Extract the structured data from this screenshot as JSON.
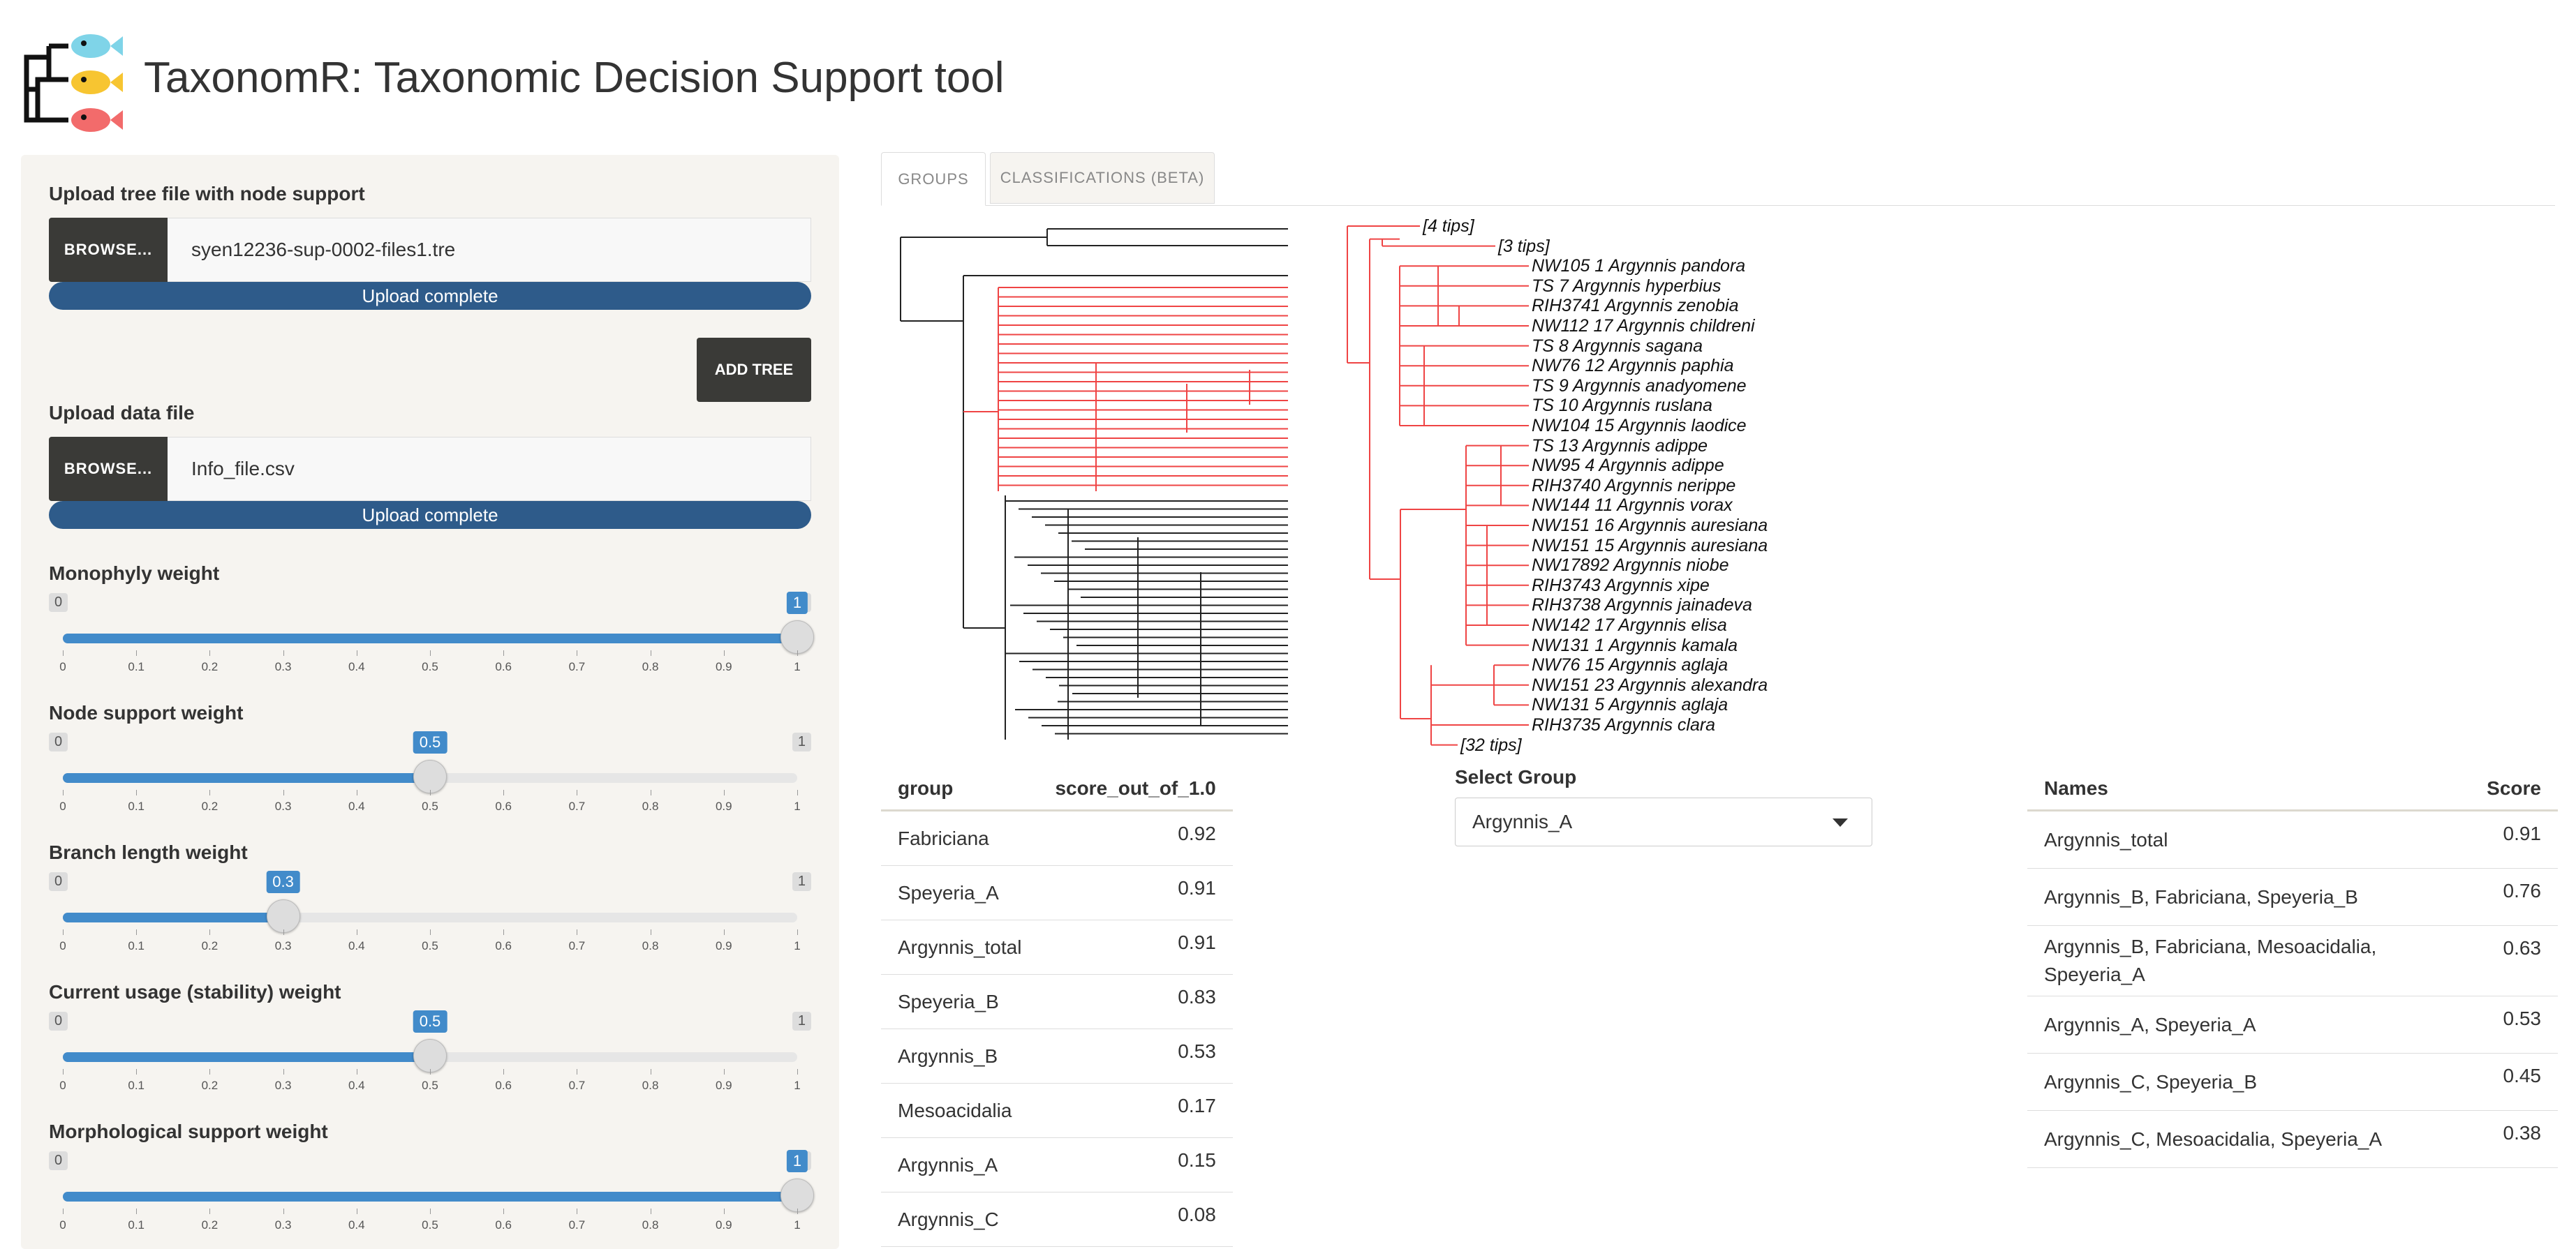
{
  "app": {
    "title": "TaxonomR: Taxonomic Decision Support tool",
    "logo_colors": [
      "#7fd4e8",
      "#f7c531",
      "#f26b6b"
    ]
  },
  "sidebar": {
    "tree_upload": {
      "label": "Upload tree file with node support",
      "browse_label": "BROWSE...",
      "file_name": "syen12236-sup-0002-files1.tre",
      "progress_text": "Upload complete",
      "progress": 1.0
    },
    "add_tree_label": "ADD TREE",
    "data_upload": {
      "label": "Upload data file",
      "browse_label": "BROWSE...",
      "file_name": "Info_file.csv",
      "progress_text": "Upload complete",
      "progress": 1.0
    },
    "sliders": [
      {
        "label": "Monophyly weight",
        "min": "0",
        "max": "1",
        "value": 1,
        "value_label": "1"
      },
      {
        "label": "Node support weight",
        "min": "0",
        "max": "1",
        "value": 0.5,
        "value_label": "0.5"
      },
      {
        "label": "Branch length weight",
        "min": "0",
        "max": "1",
        "value": 0.3,
        "value_label": "0.3"
      },
      {
        "label": "Current usage (stability) weight",
        "min": "0",
        "max": "1",
        "value": 0.5,
        "value_label": "0.5"
      },
      {
        "label": "Morphological support weight",
        "min": "0",
        "max": "1",
        "value": 1,
        "value_label": "1"
      }
    ],
    "tick_labels": [
      "0",
      "0.1",
      "0.2",
      "0.3",
      "0.4",
      "0.5",
      "0.6",
      "0.7",
      "0.8",
      "0.9",
      "1"
    ]
  },
  "tabs": [
    {
      "label": "GROUPS",
      "active": true
    },
    {
      "label": "CLASSIFICATIONS (BETA)",
      "active": false
    }
  ],
  "tree": {
    "tips": [
      {
        "label": "[4 tips]",
        "color": "red"
      },
      {
        "label": "[3 tips]",
        "color": "red"
      },
      {
        "label": "NW105 1 Argynnis pandora",
        "color": "red"
      },
      {
        "label": "TS 7 Argynnis hyperbius",
        "color": "red"
      },
      {
        "label": "RIH3741 Argynnis zenobia",
        "color": "red"
      },
      {
        "label": "NW112 17 Argynnis childreni",
        "color": "red"
      },
      {
        "label": "TS 8 Argynnis sagana",
        "color": "red"
      },
      {
        "label": "NW76 12 Argynnis paphia",
        "color": "red"
      },
      {
        "label": "TS 9 Argynnis anadyomene",
        "color": "red"
      },
      {
        "label": "TS 10 Argynnis ruslana",
        "color": "red"
      },
      {
        "label": "NW104 15 Argynnis laodice",
        "color": "red"
      },
      {
        "label": "TS 13 Argynnis adippe",
        "color": "red"
      },
      {
        "label": "NW95 4 Argynnis adippe",
        "color": "red"
      },
      {
        "label": "RIH3740 Argynnis nerippe",
        "color": "red"
      },
      {
        "label": "NW144 11 Argynnis vorax",
        "color": "red"
      },
      {
        "label": "NW151 16 Argynnis auresiana",
        "color": "red"
      },
      {
        "label": "NW151 15 Argynnis auresiana",
        "color": "red"
      },
      {
        "label": "NW17892 Argynnis niobe",
        "color": "red"
      },
      {
        "label": "RIH3743 Argynnis xipe",
        "color": "red"
      },
      {
        "label": "RIH3738 Argynnis jainadeva",
        "color": "red"
      },
      {
        "label": "NW142 17 Argynnis elisa",
        "color": "red"
      },
      {
        "label": "NW131 1 Argynnis kamala",
        "color": "red"
      },
      {
        "label": "NW76 15 Argynnis aglaja",
        "color": "red"
      },
      {
        "label": "NW151 23 Argynnis alexandra",
        "color": "red"
      },
      {
        "label": "NW131 5 Argynnis aglaja",
        "color": "red"
      },
      {
        "label": "RIH3735 Argynnis clara",
        "color": "red"
      },
      {
        "label": "[32 tips]",
        "color": "red"
      }
    ],
    "highlight_color": "#ef4444",
    "base_color": "#222222"
  },
  "group_table": {
    "headers": [
      "group",
      "score_out_of_1.0"
    ],
    "rows": [
      [
        "Fabriciana",
        "0.92"
      ],
      [
        "Speyeria_A",
        "0.91"
      ],
      [
        "Argynnis_total",
        "0.91"
      ],
      [
        "Speyeria_B",
        "0.83"
      ],
      [
        "Argynnis_B",
        "0.53"
      ],
      [
        "Mesoacidalia",
        "0.17"
      ],
      [
        "Argynnis_A",
        "0.15"
      ],
      [
        "Argynnis_C",
        "0.08"
      ]
    ]
  },
  "select_group": {
    "label": "Select Group",
    "value": "Argynnis_A"
  },
  "names_table": {
    "headers": [
      "Names",
      "Score"
    ],
    "rows": [
      [
        "Argynnis_total",
        "0.91"
      ],
      [
        "Argynnis_B, Fabriciana, Speyeria_B",
        "0.76"
      ],
      [
        "Argynnis_B, Fabriciana, Mesoacidalia, Speyeria_A",
        "0.63"
      ],
      [
        "Argynnis_A, Speyeria_A",
        "0.53"
      ],
      [
        "Argynnis_C, Speyeria_B",
        "0.45"
      ],
      [
        "Argynnis_C, Mesoacidalia, Speyeria_A",
        "0.38"
      ]
    ]
  }
}
